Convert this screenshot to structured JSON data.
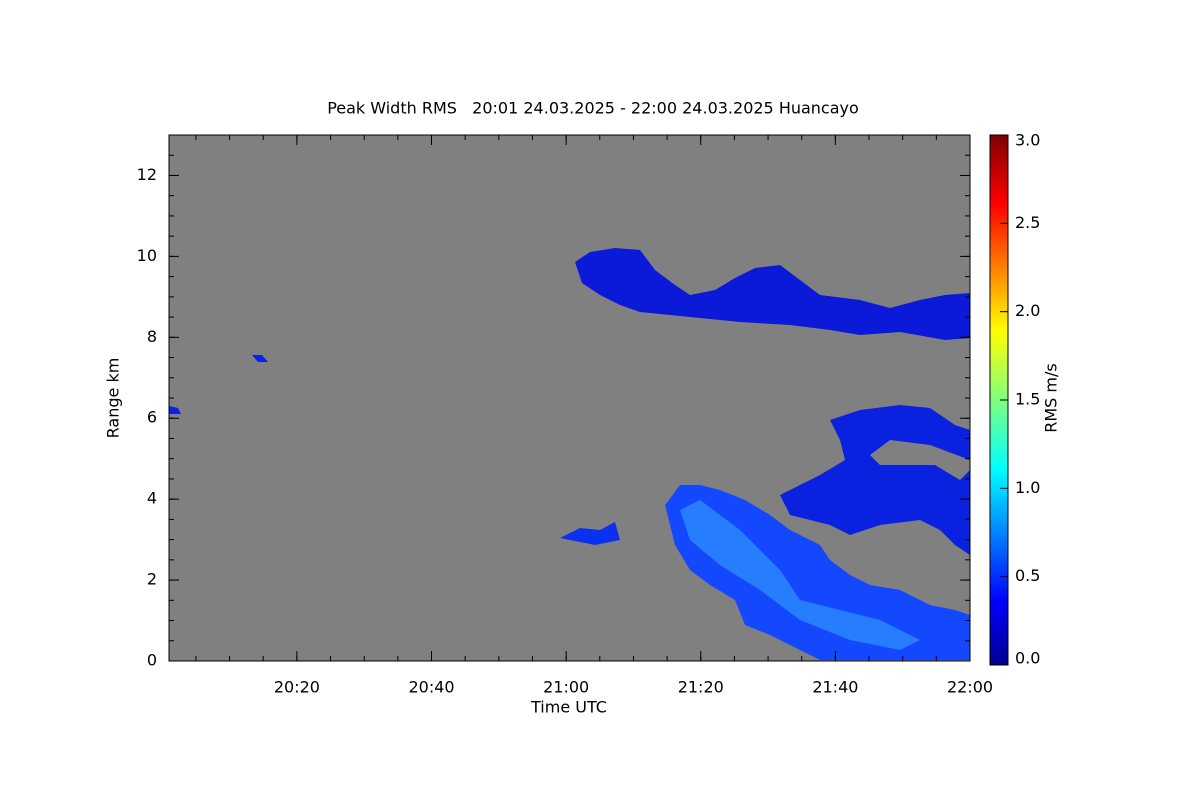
{
  "chart_data": {
    "type": "heatmap",
    "title": "Peak Width RMS   20:01 24.03.2025 - 22:00 24.03.2025 Huancayo",
    "x_label": "Time UTC",
    "y_label": "Range km",
    "xlim": [
      1201,
      1320
    ],
    "xticks": [
      {
        "value": 1220,
        "label": "20:20"
      },
      {
        "value": 1240,
        "label": "20:40"
      },
      {
        "value": 1260,
        "label": "21:00"
      },
      {
        "value": 1280,
        "label": "21:20"
      },
      {
        "value": 1300,
        "label": "21:40"
      },
      {
        "value": 1320,
        "label": "22:00"
      }
    ],
    "ylim": [
      0,
      13
    ],
    "yticks": [
      0,
      2,
      4,
      6,
      8,
      10,
      12
    ],
    "colorbar": {
      "label": "RMS m/s",
      "clim": [
        0,
        3
      ],
      "ticks": [
        {
          "value": 0,
          "label": "0.0"
        },
        {
          "value": 0.5,
          "label": "0.5"
        },
        {
          "value": 1,
          "label": "1.0"
        },
        {
          "value": 1.5,
          "label": "1.5"
        },
        {
          "value": 2,
          "label": "2.0"
        },
        {
          "value": 2.5,
          "label": "2.5"
        },
        {
          "value": 3,
          "label": "3.0"
        }
      ]
    }
  }
}
